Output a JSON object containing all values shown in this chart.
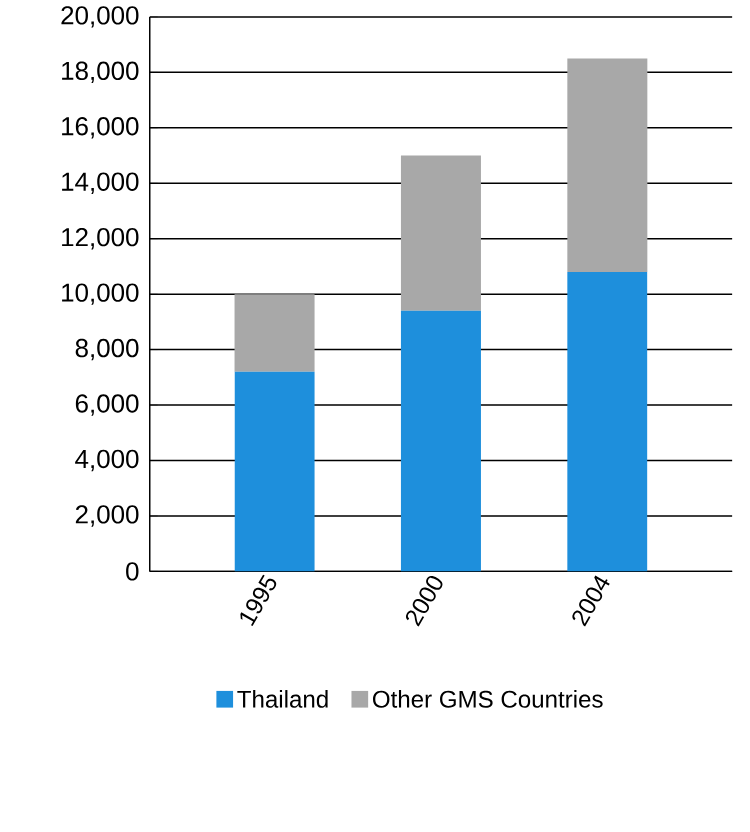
{
  "chart_data": {
    "type": "bar",
    "stacked": true,
    "categories": [
      "1995",
      "2000",
      "2004"
    ],
    "series": [
      {
        "name": "Thailand",
        "color": "#1e8fdc",
        "values": [
          7200,
          9400,
          10800
        ]
      },
      {
        "name": "Other GMS Countries",
        "color": "#a8a8a8",
        "values": [
          2800,
          5600,
          7700
        ]
      }
    ],
    "ylim": [
      0,
      20000
    ],
    "yticks": [
      {
        "value": 0,
        "label": "0"
      },
      {
        "value": 2000,
        "label": "2,000"
      },
      {
        "value": 4000,
        "label": "4,000"
      },
      {
        "value": 6000,
        "label": "6,000"
      },
      {
        "value": 8000,
        "label": "8,000"
      },
      {
        "value": 10000,
        "label": "10,000"
      },
      {
        "value": 12000,
        "label": "12,000"
      },
      {
        "value": 14000,
        "label": "14,000"
      },
      {
        "value": 16000,
        "label": "16,000"
      },
      {
        "value": 18000,
        "label": "18,000"
      },
      {
        "value": 20000,
        "label": "20,000"
      }
    ],
    "grid": "y",
    "legend": "bottom"
  }
}
